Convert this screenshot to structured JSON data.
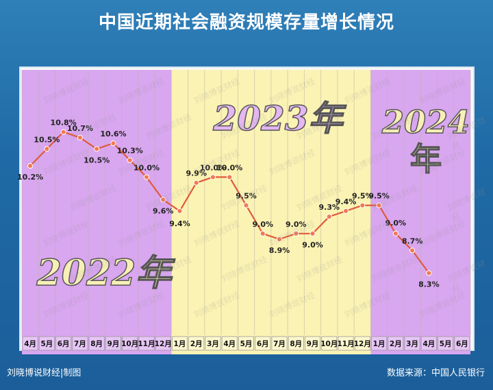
{
  "title": "中国近期社会融资规模存量增长情况",
  "footer": {
    "left": "刘晓博说财经|制图",
    "right": "数据来源：中国人民银行"
  },
  "watermark": "刘晓博说财经",
  "colors": {
    "background": "#1f6aa6",
    "band_2022": "#d9a6f0",
    "band_2023": "#fbf3b3",
    "band_2024": "#d9a6f0",
    "line": "#e05a3c",
    "marker": "#f07b55",
    "year_label_fill": "#f8efb6",
    "year_label_fill_2023": "#e4b6f2",
    "year_label_stroke": "#555555"
  },
  "chart_data": {
    "type": "line",
    "title": "中国近期社会融资规模存量增长情况",
    "x": [
      "4月",
      "5月",
      "6月",
      "7月",
      "8月",
      "9月",
      "10月",
      "11月",
      "12月",
      "1月",
      "2月",
      "3月",
      "4月",
      "5月",
      "6月",
      "7月",
      "8月",
      "9月",
      "10月",
      "11月",
      "12月",
      "1月",
      "2月",
      "3月",
      "4月",
      "5月",
      "6月"
    ],
    "series": [
      {
        "values": [
          10.2,
          10.5,
          10.8,
          10.7,
          10.5,
          10.6,
          10.3,
          10.0,
          9.6,
          9.4,
          9.9,
          10.0,
          10.0,
          9.5,
          9.0,
          8.9,
          9.0,
          9.0,
          9.3,
          9.4,
          9.5,
          9.5,
          9.0,
          8.7,
          8.3,
          null,
          null
        ],
        "labels": [
          "10.2%",
          "10.5%",
          "10.8%",
          "10.7%",
          "10.5%",
          "10.6%",
          "10.3%",
          "10.0%",
          "9.6%",
          "9.4%",
          "9.9%",
          "10.0%",
          "10.0%",
          "9.5%",
          "9.0%",
          "8.9%",
          "9.0%",
          "9.0%",
          "9.3%",
          "9.4%",
          "9.5%",
          "9.5%",
          "9.0%",
          "8.7%",
          "8.3%",
          "",
          ""
        ]
      }
    ],
    "unit": "%",
    "ylim": [
      7.2,
      11.9
    ],
    "grid": "vertical",
    "year_bands": [
      {
        "label": "2022年",
        "start": 0,
        "end": 8
      },
      {
        "label": "2023年",
        "start": 9,
        "end": 20
      },
      {
        "label": "2024年",
        "start": 21,
        "end": 26
      }
    ]
  }
}
